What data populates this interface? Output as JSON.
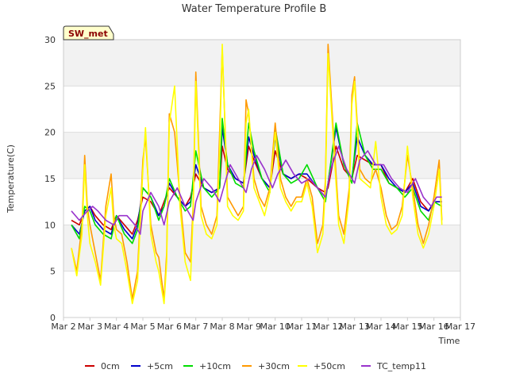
{
  "chart_data": {
    "type": "line",
    "title": "Water Temperature Profile B",
    "badge": "SW_met",
    "xlabel": "Time",
    "ylabel": "Temperature(C)",
    "ylim": [
      0,
      30
    ],
    "yticks": [
      0,
      5,
      10,
      15,
      20,
      25,
      30
    ],
    "xlim": [
      2,
      17
    ],
    "xticks": [
      2,
      3,
      4,
      5,
      6,
      7,
      8,
      9,
      10,
      11,
      12,
      13,
      14,
      15,
      16,
      17
    ],
    "xtick_labels": [
      "Mar 2",
      "Mar 3",
      "Mar 4",
      "Mar 5",
      "Mar 6",
      "Mar 7",
      "Mar 8",
      "Mar 9",
      "Mar 10",
      "Mar 11",
      "Mar 12",
      "Mar 13",
      "Mar 14",
      "Mar 15",
      "Mar 16",
      "Mar 17"
    ],
    "grid": true,
    "bands": true,
    "legend_position": "bottom",
    "series": [
      {
        "name": "0cm",
        "color": "#cc0000",
        "x": [
          2.3,
          2.6,
          2.8,
          3.0,
          3.2,
          3.5,
          3.8,
          4.0,
          4.3,
          4.6,
          4.8,
          5.0,
          5.3,
          5.6,
          5.8,
          6.0,
          6.3,
          6.6,
          6.8,
          7.0,
          7.3,
          7.6,
          7.9,
          8.0,
          8.2,
          8.5,
          8.8,
          9.0,
          9.2,
          9.5,
          9.8,
          10.0,
          10.3,
          10.6,
          10.9,
          11.2,
          11.6,
          11.9,
          12.0,
          12.3,
          12.6,
          12.9,
          13.1,
          13.4,
          13.7,
          14.0,
          14.3,
          14.6,
          14.9,
          15.2,
          15.5,
          15.8,
          16.0,
          16.3
        ],
        "y": [
          10.5,
          10.0,
          11.5,
          12.0,
          11.0,
          10.0,
          9.5,
          11.0,
          10.0,
          9.0,
          10.5,
          13.0,
          12.5,
          11.0,
          12.5,
          14.0,
          13.0,
          12.0,
          13.0,
          15.5,
          14.0,
          13.5,
          14.0,
          18.5,
          16.0,
          15.0,
          14.5,
          18.5,
          17.0,
          15.0,
          14.0,
          18.0,
          15.5,
          15.0,
          15.5,
          15.0,
          14.0,
          13.5,
          14.0,
          18.5,
          16.0,
          15.0,
          17.5,
          17.0,
          16.5,
          16.5,
          14.5,
          14.0,
          13.5,
          15.0,
          12.5,
          11.5,
          12.5,
          12.5
        ]
      },
      {
        "name": "+5cm",
        "color": "#0000cc",
        "x": [
          2.3,
          2.6,
          2.8,
          3.0,
          3.2,
          3.5,
          3.8,
          4.0,
          4.3,
          4.6,
          4.8,
          5.0,
          5.3,
          5.6,
          5.8,
          6.0,
          6.3,
          6.6,
          6.8,
          7.0,
          7.3,
          7.6,
          7.9,
          8.0,
          8.2,
          8.5,
          8.8,
          9.0,
          9.2,
          9.5,
          9.8,
          10.0,
          10.3,
          10.6,
          10.9,
          11.2,
          11.6,
          11.9,
          12.0,
          12.3,
          12.6,
          12.9,
          13.1,
          13.4,
          13.7,
          14.0,
          14.3,
          14.6,
          14.9,
          15.2,
          15.5,
          15.8,
          16.0,
          16.3
        ],
        "y": [
          10.0,
          9.0,
          11.5,
          12.0,
          10.5,
          9.5,
          9.0,
          11.0,
          9.5,
          8.5,
          10.0,
          14.0,
          13.0,
          11.0,
          12.0,
          14.5,
          13.0,
          12.0,
          12.5,
          16.5,
          14.0,
          13.5,
          14.0,
          20.5,
          16.5,
          15.0,
          14.5,
          19.5,
          17.5,
          15.0,
          14.0,
          19.5,
          15.5,
          15.0,
          15.5,
          15.5,
          14.0,
          13.0,
          14.5,
          20.5,
          16.5,
          15.0,
          19.5,
          17.5,
          16.5,
          16.5,
          15.0,
          14.0,
          13.5,
          14.5,
          12.0,
          11.5,
          12.5,
          12.5
        ]
      },
      {
        "name": "+10cm",
        "color": "#00dd00",
        "x": [
          2.3,
          2.6,
          2.8,
          3.0,
          3.2,
          3.5,
          3.8,
          4.0,
          4.3,
          4.6,
          4.8,
          5.0,
          5.3,
          5.6,
          5.8,
          6.0,
          6.3,
          6.6,
          6.8,
          7.0,
          7.3,
          7.6,
          7.9,
          8.0,
          8.2,
          8.5,
          8.8,
          9.0,
          9.2,
          9.5,
          9.8,
          10.0,
          10.3,
          10.6,
          10.9,
          11.2,
          11.6,
          11.9,
          12.0,
          12.3,
          12.6,
          12.9,
          13.1,
          13.4,
          13.7,
          14.0,
          14.3,
          14.6,
          14.9,
          15.2,
          15.5,
          15.8,
          16.0,
          16.3
        ],
        "y": [
          10.0,
          8.5,
          12.0,
          11.5,
          10.0,
          9.0,
          8.5,
          11.0,
          9.0,
          8.0,
          9.5,
          14.0,
          13.0,
          10.5,
          12.0,
          15.0,
          13.0,
          11.5,
          12.0,
          18.0,
          14.0,
          13.0,
          14.0,
          21.5,
          16.5,
          14.5,
          14.0,
          21.0,
          18.0,
          15.0,
          13.5,
          20.5,
          15.5,
          14.5,
          15.0,
          16.5,
          14.0,
          12.5,
          14.5,
          21.0,
          16.5,
          14.5,
          21.0,
          17.5,
          16.0,
          16.0,
          14.5,
          14.0,
          13.0,
          14.0,
          11.5,
          10.5,
          12.5,
          12.0
        ]
      },
      {
        "name": "+30cm",
        "color": "#ff9900",
        "x": [
          2.3,
          2.5,
          2.7,
          2.8,
          2.9,
          3.0,
          3.2,
          3.4,
          3.6,
          3.8,
          3.9,
          4.0,
          4.2,
          4.4,
          4.6,
          4.8,
          5.0,
          5.1,
          5.3,
          5.5,
          5.6,
          5.8,
          5.9,
          6.0,
          6.2,
          6.4,
          6.6,
          6.8,
          6.9,
          7.0,
          7.2,
          7.4,
          7.6,
          7.8,
          7.9,
          8.0,
          8.2,
          8.4,
          8.6,
          8.8,
          8.9,
          9.0,
          9.2,
          9.4,
          9.6,
          9.8,
          10.0,
          10.2,
          10.4,
          10.6,
          10.8,
          11.0,
          11.2,
          11.4,
          11.6,
          11.8,
          11.9,
          12.0,
          12.2,
          12.4,
          12.6,
          12.8,
          12.9,
          13.0,
          13.2,
          13.4,
          13.6,
          13.8,
          14.0,
          14.2,
          14.4,
          14.6,
          14.8,
          15.0,
          15.2,
          15.4,
          15.6,
          15.8,
          16.0,
          16.2,
          16.3
        ],
        "y": [
          7.5,
          5.0,
          10.0,
          17.5,
          12.0,
          10.0,
          7.0,
          4.0,
          12.0,
          15.5,
          11.0,
          9.5,
          9.0,
          6.0,
          2.0,
          5.0,
          17.0,
          19.5,
          10.0,
          7.0,
          6.5,
          2.0,
          7.0,
          22.0,
          20.0,
          13.0,
          7.0,
          6.0,
          12.0,
          26.5,
          12.0,
          10.0,
          9.0,
          11.0,
          20.0,
          29.0,
          13.0,
          12.0,
          11.0,
          12.0,
          23.5,
          22.0,
          15.0,
          13.0,
          12.0,
          14.0,
          21.0,
          15.0,
          13.0,
          12.0,
          13.0,
          13.0,
          15.0,
          13.0,
          8.0,
          10.0,
          15.0,
          29.5,
          20.0,
          11.0,
          9.0,
          14.0,
          24.0,
          26.0,
          16.0,
          15.0,
          14.5,
          16.0,
          14.0,
          11.0,
          9.5,
          10.0,
          12.0,
          17.5,
          14.0,
          10.0,
          8.0,
          10.0,
          13.0,
          17.0,
          10.5
        ]
      },
      {
        "name": "+50cm",
        "color": "#ffff00",
        "x": [
          2.3,
          2.5,
          2.7,
          2.8,
          2.9,
          3.0,
          3.2,
          3.4,
          3.6,
          3.8,
          3.9,
          4.0,
          4.2,
          4.4,
          4.6,
          4.8,
          5.0,
          5.1,
          5.3,
          5.5,
          5.6,
          5.8,
          5.9,
          6.0,
          6.2,
          6.4,
          6.6,
          6.8,
          6.9,
          7.0,
          7.2,
          7.4,
          7.6,
          7.8,
          7.9,
          8.0,
          8.2,
          8.4,
          8.6,
          8.8,
          8.9,
          9.0,
          9.2,
          9.4,
          9.6,
          9.8,
          10.0,
          10.2,
          10.4,
          10.6,
          10.8,
          11.0,
          11.2,
          11.4,
          11.6,
          11.8,
          11.9,
          12.0,
          12.2,
          12.4,
          12.6,
          12.8,
          12.9,
          13.0,
          13.2,
          13.4,
          13.6,
          13.8,
          14.0,
          14.2,
          14.4,
          14.6,
          14.8,
          15.0,
          15.2,
          15.4,
          15.6,
          15.8,
          16.0,
          16.2,
          16.3
        ],
        "y": [
          7.5,
          4.5,
          9.0,
          16.5,
          11.0,
          8.0,
          6.0,
          3.5,
          11.0,
          14.0,
          10.0,
          8.5,
          8.0,
          5.0,
          1.5,
          4.0,
          16.0,
          20.5,
          9.0,
          6.0,
          5.0,
          1.5,
          6.0,
          21.0,
          25.0,
          12.0,
          6.0,
          4.0,
          11.0,
          25.5,
          11.0,
          9.0,
          8.5,
          10.0,
          18.0,
          29.5,
          12.0,
          11.0,
          10.5,
          11.5,
          21.0,
          22.5,
          14.0,
          12.5,
          11.0,
          13.5,
          20.0,
          14.0,
          12.5,
          11.5,
          12.5,
          12.5,
          14.5,
          12.0,
          7.0,
          9.0,
          14.0,
          28.5,
          19.0,
          10.0,
          8.0,
          13.0,
          23.0,
          25.5,
          15.0,
          14.5,
          14.0,
          19.0,
          13.0,
          10.0,
          9.0,
          9.5,
          11.0,
          18.5,
          13.0,
          9.0,
          7.5,
          9.0,
          12.0,
          16.0,
          10.0
        ]
      },
      {
        "name": "TC_temp11",
        "color": "#9933cc",
        "x": [
          2.3,
          2.6,
          2.9,
          3.1,
          3.3,
          3.6,
          3.9,
          4.1,
          4.4,
          4.7,
          4.9,
          5.0,
          5.3,
          5.6,
          5.8,
          6.0,
          6.3,
          6.6,
          6.9,
          7.0,
          7.3,
          7.6,
          7.9,
          8.1,
          8.3,
          8.6,
          8.9,
          9.1,
          9.3,
          9.6,
          9.9,
          10.1,
          10.4,
          10.7,
          11.0,
          11.3,
          11.6,
          11.9,
          12.1,
          12.4,
          12.7,
          13.0,
          13.2,
          13.5,
          13.8,
          14.1,
          14.4,
          14.7,
          15.0,
          15.3,
          15.6,
          15.9,
          16.1,
          16.3
        ],
        "y": [
          11.5,
          10.5,
          11.5,
          12.0,
          11.5,
          10.5,
          10.0,
          11.0,
          11.0,
          10.0,
          9.0,
          11.5,
          13.5,
          12.0,
          10.0,
          12.5,
          14.0,
          12.0,
          10.5,
          12.5,
          15.0,
          14.0,
          12.5,
          14.5,
          16.5,
          15.0,
          13.5,
          16.0,
          17.5,
          16.0,
          14.0,
          15.5,
          17.0,
          15.5,
          14.5,
          15.0,
          14.0,
          13.0,
          16.0,
          18.5,
          16.0,
          14.5,
          17.0,
          18.0,
          16.5,
          16.5,
          15.0,
          14.0,
          13.5,
          15.0,
          13.0,
          12.0,
          13.0,
          13.0
        ]
      }
    ]
  }
}
